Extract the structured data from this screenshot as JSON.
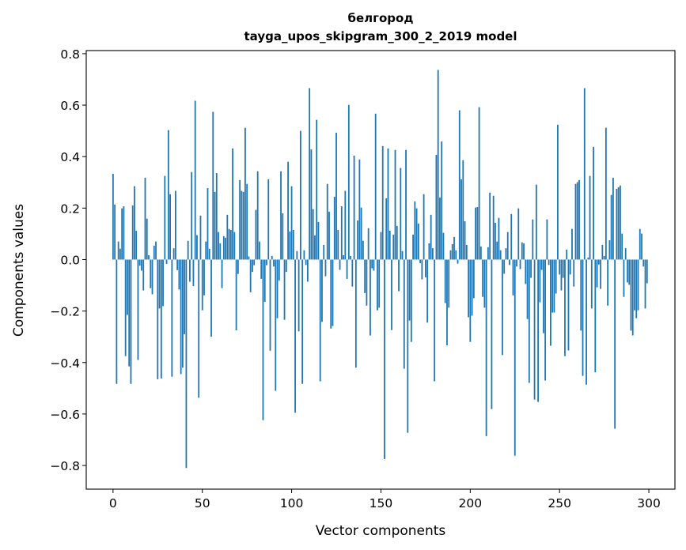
{
  "chart_data": {
    "type": "bar",
    "title": "белгород",
    "subtitle": "tayga_upos_skipgram_300_2_2019 model",
    "xlabel": "Vector components",
    "ylabel": "Components values",
    "xlim": [
      -15,
      314.6
    ],
    "ylim": [
      -0.892,
      0.812
    ],
    "xticks": [
      0,
      50,
      100,
      150,
      200,
      250,
      300
    ],
    "yticks": [
      -0.8,
      -0.6,
      -0.4,
      -0.2,
      0.0,
      0.2,
      0.4,
      0.6,
      0.8
    ],
    "ytick_labels": [
      "−0.8",
      "−0.6",
      "−0.4",
      "−0.2",
      "0.0",
      "0.2",
      "0.4",
      "0.6",
      "0.8"
    ],
    "grid": false,
    "bar_color": "#1f77b4",
    "values": [
      0.333,
      0.214,
      -0.483,
      0.07,
      0.042,
      0.199,
      0.207,
      -0.375,
      -0.215,
      -0.415,
      -0.483,
      0.21,
      0.285,
      0.112,
      -0.39,
      -0.024,
      -0.043,
      -0.12,
      0.318,
      0.159,
      0.017,
      -0.111,
      -0.135,
      0.054,
      0.07,
      -0.465,
      -0.19,
      -0.462,
      -0.181,
      0.325,
      -0.017,
      0.503,
      0.254,
      -0.455,
      0.044,
      0.267,
      -0.041,
      -0.116,
      -0.445,
      -0.42,
      -0.29,
      -0.81,
      0.073,
      -0.086,
      0.34,
      -0.103,
      0.617,
      0.095,
      -0.537,
      0.171,
      -0.197,
      -0.139,
      0.07,
      0.278,
      0.042,
      -0.3,
      0.574,
      0.263,
      0.336,
      0.107,
      0.063,
      -0.111,
      0.091,
      0.085,
      0.174,
      0.119,
      0.115,
      0.432,
      0.107,
      -0.275,
      -0.056,
      0.309,
      0.267,
      0.263,
      0.512,
      0.294,
      0.012,
      -0.127,
      -0.048,
      -0.022,
      0.193,
      0.343,
      0.07,
      -0.075,
      -0.624,
      -0.164,
      -0.022,
      0.312,
      -0.354,
      0.014,
      -0.027,
      -0.51,
      -0.228,
      -0.081,
      0.343,
      0.18,
      -0.234,
      -0.048,
      0.38,
      0.109,
      0.285,
      0.115,
      -0.595,
      0.033,
      -0.279,
      0.5,
      -0.483,
      0.036,
      -0.021,
      -0.086,
      0.666,
      0.428,
      0.196,
      0.094,
      0.543,
      0.146,
      -0.473,
      -0.242,
      0.057,
      -0.065,
      0.294,
      0.186,
      -0.268,
      -0.258,
      0.244,
      0.493,
      0.115,
      -0.04,
      0.207,
      0.017,
      0.267,
      -0.075,
      0.601,
      0.014,
      -0.105,
      0.404,
      -0.42,
      0.152,
      0.389,
      0.202,
      0.073,
      -0.13,
      -0.179,
      0.122,
      -0.295,
      -0.034,
      -0.043,
      0.567,
      -0.197,
      -0.187,
      0.107,
      0.441,
      -0.775,
      0.238,
      0.432,
      0.112,
      -0.274,
      0.097,
      0.426,
      0.131,
      -0.123,
      0.356,
      0.033,
      -0.424,
      0.426,
      -0.673,
      -0.237,
      -0.32,
      0.097,
      0.226,
      0.199,
      0.14,
      -0.014,
      -0.077,
      0.254,
      -0.069,
      -0.245,
      0.063,
      0.174,
      0.044,
      -0.473,
      0.407,
      0.737,
      0.241,
      0.459,
      0.104,
      -0.169,
      -0.333,
      -0.187,
      0.036,
      0.06,
      0.088,
      0.036,
      -0.016,
      0.58,
      0.312,
      0.386,
      0.149,
      0.057,
      -0.224,
      -0.32,
      -0.218,
      -0.15,
      0.202,
      0.204,
      0.592,
      0.051,
      -0.145,
      -0.187,
      -0.686,
      0.048,
      0.26,
      -0.581,
      0.248,
      0.143,
      0.07,
      0.162,
      0.036,
      -0.371,
      -0.055,
      0.044,
      0.107,
      -0.021,
      0.177,
      -0.139,
      -0.762,
      -0.027,
      0.199,
      -0.037,
      0.067,
      0.063,
      -0.095,
      -0.231,
      -0.479,
      -0.071,
      0.156,
      -0.544,
      0.291,
      -0.553,
      -0.166,
      -0.04,
      -0.286,
      -0.47,
      0.156,
      -0.021,
      -0.335,
      -0.206,
      -0.206,
      -0.132,
      0.524,
      -0.058,
      -0.12,
      -0.071,
      -0.375,
      0.039,
      -0.353,
      -0.058,
      0.119,
      -0.105,
      0.294,
      0.301,
      0.309,
      -0.276,
      -0.452,
      0.666,
      -0.486,
      0.008,
      0.325,
      -0.19,
      0.438,
      -0.438,
      -0.108,
      -0.019,
      -0.114,
      0.057,
      0.014,
      0.512,
      -0.179,
      0.075,
      0.251,
      0.318,
      -0.657,
      0.275,
      0.281,
      0.288,
      0.101,
      -0.145,
      0.044,
      -0.089,
      -0.098,
      -0.276,
      -0.295,
      -0.197,
      -0.228,
      -0.197,
      0.119,
      0.101,
      -0.027,
      -0.19,
      -0.092
    ]
  }
}
